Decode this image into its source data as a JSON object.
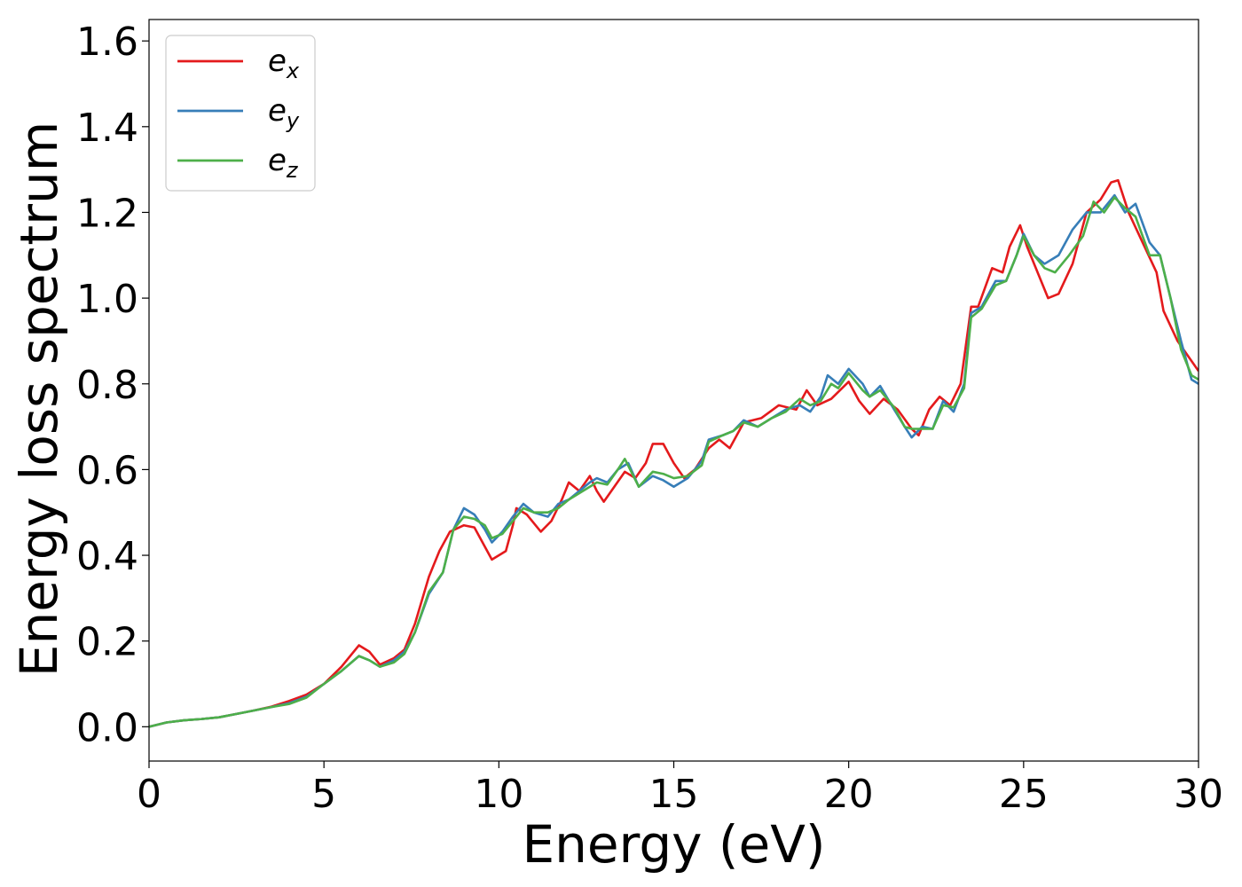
{
  "chart_data": {
    "type": "line",
    "title": "",
    "xlabel": "Energy (eV)",
    "ylabel": "Energy loss spectrum",
    "xlim": [
      0,
      30
    ],
    "ylim": [
      -0.08,
      1.65
    ],
    "xticks": [
      0,
      5,
      10,
      15,
      20,
      25,
      30
    ],
    "xtick_labels": [
      "0",
      "5",
      "10",
      "15",
      "20",
      "25",
      "30"
    ],
    "yticks": [
      0.0,
      0.2,
      0.4,
      0.6,
      0.8,
      1.0,
      1.2,
      1.4,
      1.6
    ],
    "ytick_labels": [
      "0.0",
      "0.2",
      "0.4",
      "0.6",
      "0.8",
      "1.0",
      "1.2",
      "1.4",
      "1.6"
    ],
    "grid": false,
    "legend_position": "top-left",
    "series": [
      {
        "name": "e_x",
        "legend_base": "e",
        "legend_sub": "x",
        "color": "#e41a1c",
        "points": [
          [
            0,
            0
          ],
          [
            0.5,
            0.01
          ],
          [
            1,
            0.015
          ],
          [
            1.5,
            0.018
          ],
          [
            2,
            0.022
          ],
          [
            2.5,
            0.03
          ],
          [
            3,
            0.038
          ],
          [
            3.5,
            0.047
          ],
          [
            4,
            0.06
          ],
          [
            4.5,
            0.075
          ],
          [
            5,
            0.1
          ],
          [
            5.5,
            0.14
          ],
          [
            5.8,
            0.17
          ],
          [
            6,
            0.19
          ],
          [
            6.3,
            0.175
          ],
          [
            6.6,
            0.145
          ],
          [
            7,
            0.16
          ],
          [
            7.3,
            0.18
          ],
          [
            7.6,
            0.24
          ],
          [
            8,
            0.35
          ],
          [
            8.3,
            0.41
          ],
          [
            8.6,
            0.455
          ],
          [
            9,
            0.47
          ],
          [
            9.3,
            0.465
          ],
          [
            9.6,
            0.42
          ],
          [
            9.8,
            0.39
          ],
          [
            10.2,
            0.41
          ],
          [
            10.4,
            0.47
          ],
          [
            10.5,
            0.51
          ],
          [
            10.8,
            0.495
          ],
          [
            11.2,
            0.455
          ],
          [
            11.5,
            0.48
          ],
          [
            11.8,
            0.53
          ],
          [
            12,
            0.57
          ],
          [
            12.3,
            0.55
          ],
          [
            12.6,
            0.585
          ],
          [
            12.8,
            0.55
          ],
          [
            13,
            0.525
          ],
          [
            13.3,
            0.56
          ],
          [
            13.6,
            0.595
          ],
          [
            13.9,
            0.58
          ],
          [
            14.2,
            0.615
          ],
          [
            14.4,
            0.66
          ],
          [
            14.7,
            0.66
          ],
          [
            15,
            0.615
          ],
          [
            15.3,
            0.58
          ],
          [
            15.6,
            0.6
          ],
          [
            16,
            0.65
          ],
          [
            16.3,
            0.67
          ],
          [
            16.6,
            0.65
          ],
          [
            17,
            0.71
          ],
          [
            17.5,
            0.72
          ],
          [
            18,
            0.75
          ],
          [
            18.5,
            0.74
          ],
          [
            18.8,
            0.785
          ],
          [
            19.1,
            0.75
          ],
          [
            19.5,
            0.765
          ],
          [
            20,
            0.805
          ],
          [
            20.3,
            0.76
          ],
          [
            20.6,
            0.73
          ],
          [
            21,
            0.765
          ],
          [
            21.4,
            0.74
          ],
          [
            21.8,
            0.695
          ],
          [
            22,
            0.68
          ],
          [
            22.3,
            0.74
          ],
          [
            22.6,
            0.77
          ],
          [
            22.9,
            0.75
          ],
          [
            23.2,
            0.8
          ],
          [
            23.5,
            0.98
          ],
          [
            23.7,
            0.98
          ],
          [
            24.1,
            1.07
          ],
          [
            24.4,
            1.06
          ],
          [
            24.6,
            1.12
          ],
          [
            24.9,
            1.17
          ],
          [
            25.1,
            1.12
          ],
          [
            25.4,
            1.06
          ],
          [
            25.7,
            1.0
          ],
          [
            26,
            1.01
          ],
          [
            26.4,
            1.08
          ],
          [
            26.8,
            1.2
          ],
          [
            27.2,
            1.23
          ],
          [
            27.5,
            1.27
          ],
          [
            27.7,
            1.275
          ],
          [
            28,
            1.2
          ],
          [
            28.4,
            1.13
          ],
          [
            28.8,
            1.06
          ],
          [
            29,
            0.97
          ],
          [
            29.4,
            0.9
          ],
          [
            29.7,
            0.865
          ],
          [
            30,
            0.83
          ]
        ]
      },
      {
        "name": "e_y",
        "legend_base": "e",
        "legend_sub": "y",
        "color": "#377eb8",
        "points": [
          [
            0,
            0
          ],
          [
            0.5,
            0.01
          ],
          [
            1,
            0.015
          ],
          [
            1.5,
            0.018
          ],
          [
            2,
            0.022
          ],
          [
            2.5,
            0.03
          ],
          [
            3,
            0.038
          ],
          [
            3.5,
            0.046
          ],
          [
            4,
            0.055
          ],
          [
            4.5,
            0.07
          ],
          [
            5,
            0.1
          ],
          [
            5.5,
            0.13
          ],
          [
            6,
            0.165
          ],
          [
            6.3,
            0.155
          ],
          [
            6.6,
            0.14
          ],
          [
            7,
            0.155
          ],
          [
            7.3,
            0.175
          ],
          [
            7.6,
            0.22
          ],
          [
            8,
            0.31
          ],
          [
            8.4,
            0.36
          ],
          [
            8.7,
            0.46
          ],
          [
            9,
            0.51
          ],
          [
            9.3,
            0.495
          ],
          [
            9.6,
            0.46
          ],
          [
            9.8,
            0.43
          ],
          [
            10.1,
            0.455
          ],
          [
            10.4,
            0.49
          ],
          [
            10.7,
            0.52
          ],
          [
            11,
            0.5
          ],
          [
            11.4,
            0.49
          ],
          [
            11.7,
            0.52
          ],
          [
            12,
            0.53
          ],
          [
            12.3,
            0.55
          ],
          [
            12.6,
            0.57
          ],
          [
            12.8,
            0.58
          ],
          [
            13.1,
            0.57
          ],
          [
            13.4,
            0.6
          ],
          [
            13.7,
            0.615
          ],
          [
            14,
            0.56
          ],
          [
            14.4,
            0.585
          ],
          [
            14.7,
            0.575
          ],
          [
            15,
            0.56
          ],
          [
            15.4,
            0.58
          ],
          [
            15.8,
            0.62
          ],
          [
            16,
            0.67
          ],
          [
            16.4,
            0.68
          ],
          [
            16.7,
            0.69
          ],
          [
            17,
            0.715
          ],
          [
            17.4,
            0.7
          ],
          [
            17.8,
            0.72
          ],
          [
            18.2,
            0.74
          ],
          [
            18.6,
            0.75
          ],
          [
            18.9,
            0.735
          ],
          [
            19.2,
            0.77
          ],
          [
            19.4,
            0.82
          ],
          [
            19.7,
            0.8
          ],
          [
            20,
            0.835
          ],
          [
            20.4,
            0.8
          ],
          [
            20.6,
            0.77
          ],
          [
            20.9,
            0.795
          ],
          [
            21.3,
            0.74
          ],
          [
            21.6,
            0.7
          ],
          [
            21.8,
            0.675
          ],
          [
            22.1,
            0.7
          ],
          [
            22.4,
            0.695
          ],
          [
            22.7,
            0.76
          ],
          [
            23,
            0.735
          ],
          [
            23.3,
            0.8
          ],
          [
            23.5,
            0.965
          ],
          [
            23.8,
            0.98
          ],
          [
            24.2,
            1.04
          ],
          [
            24.5,
            1.04
          ],
          [
            24.8,
            1.1
          ],
          [
            25,
            1.15
          ],
          [
            25.3,
            1.1
          ],
          [
            25.6,
            1.08
          ],
          [
            26,
            1.1
          ],
          [
            26.4,
            1.16
          ],
          [
            26.8,
            1.2
          ],
          [
            27.2,
            1.2
          ],
          [
            27.6,
            1.24
          ],
          [
            27.9,
            1.2
          ],
          [
            28.2,
            1.22
          ],
          [
            28.6,
            1.13
          ],
          [
            28.9,
            1.1
          ],
          [
            29.2,
            1.0
          ],
          [
            29.5,
            0.9
          ],
          [
            29.8,
            0.81
          ],
          [
            30,
            0.8
          ]
        ]
      },
      {
        "name": "e_z",
        "legend_base": "e",
        "legend_sub": "z",
        "color": "#4daf4a",
        "points": [
          [
            0,
            0
          ],
          [
            0.5,
            0.01
          ],
          [
            1,
            0.015
          ],
          [
            1.5,
            0.018
          ],
          [
            2,
            0.022
          ],
          [
            2.5,
            0.03
          ],
          [
            3,
            0.038
          ],
          [
            3.5,
            0.046
          ],
          [
            4,
            0.053
          ],
          [
            4.5,
            0.068
          ],
          [
            5,
            0.1
          ],
          [
            5.5,
            0.13
          ],
          [
            6,
            0.165
          ],
          [
            6.3,
            0.155
          ],
          [
            6.6,
            0.14
          ],
          [
            7,
            0.15
          ],
          [
            7.3,
            0.17
          ],
          [
            7.6,
            0.22
          ],
          [
            8,
            0.315
          ],
          [
            8.4,
            0.36
          ],
          [
            8.7,
            0.46
          ],
          [
            9,
            0.49
          ],
          [
            9.3,
            0.485
          ],
          [
            9.6,
            0.47
          ],
          [
            9.8,
            0.44
          ],
          [
            10.1,
            0.45
          ],
          [
            10.4,
            0.48
          ],
          [
            10.7,
            0.51
          ],
          [
            11,
            0.5
          ],
          [
            11.4,
            0.5
          ],
          [
            11.7,
            0.51
          ],
          [
            12,
            0.53
          ],
          [
            12.3,
            0.545
          ],
          [
            12.6,
            0.56
          ],
          [
            12.8,
            0.57
          ],
          [
            13.1,
            0.565
          ],
          [
            13.4,
            0.6
          ],
          [
            13.6,
            0.625
          ],
          [
            14,
            0.56
          ],
          [
            14.4,
            0.595
          ],
          [
            14.7,
            0.59
          ],
          [
            15,
            0.58
          ],
          [
            15.4,
            0.585
          ],
          [
            15.8,
            0.61
          ],
          [
            16,
            0.665
          ],
          [
            16.4,
            0.68
          ],
          [
            16.7,
            0.69
          ],
          [
            17,
            0.71
          ],
          [
            17.4,
            0.7
          ],
          [
            17.8,
            0.72
          ],
          [
            18.2,
            0.735
          ],
          [
            18.6,
            0.765
          ],
          [
            18.9,
            0.75
          ],
          [
            19.2,
            0.76
          ],
          [
            19.5,
            0.8
          ],
          [
            19.7,
            0.79
          ],
          [
            20,
            0.825
          ],
          [
            20.4,
            0.785
          ],
          [
            20.6,
            0.77
          ],
          [
            20.9,
            0.785
          ],
          [
            21.3,
            0.745
          ],
          [
            21.6,
            0.7
          ],
          [
            21.8,
            0.695
          ],
          [
            22.1,
            0.695
          ],
          [
            22.4,
            0.695
          ],
          [
            22.7,
            0.75
          ],
          [
            23,
            0.745
          ],
          [
            23.3,
            0.79
          ],
          [
            23.5,
            0.955
          ],
          [
            23.8,
            0.975
          ],
          [
            24.2,
            1.03
          ],
          [
            24.5,
            1.04
          ],
          [
            24.8,
            1.1
          ],
          [
            25,
            1.145
          ],
          [
            25.3,
            1.1
          ],
          [
            25.6,
            1.07
          ],
          [
            25.9,
            1.06
          ],
          [
            26.3,
            1.1
          ],
          [
            26.7,
            1.145
          ],
          [
            27,
            1.225
          ],
          [
            27.3,
            1.2
          ],
          [
            27.6,
            1.235
          ],
          [
            27.9,
            1.21
          ],
          [
            28.2,
            1.19
          ],
          [
            28.6,
            1.1
          ],
          [
            28.9,
            1.1
          ],
          [
            29.2,
            1.0
          ],
          [
            29.5,
            0.88
          ],
          [
            29.8,
            0.82
          ],
          [
            30,
            0.81
          ]
        ]
      }
    ]
  }
}
